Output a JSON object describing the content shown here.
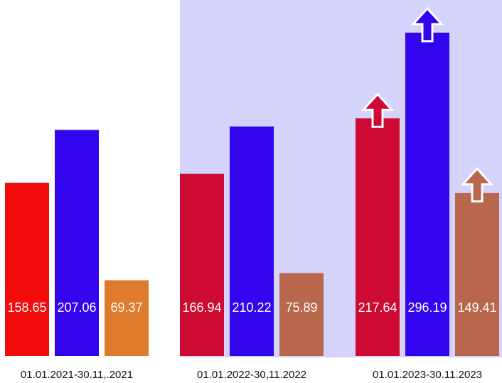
{
  "chart_data": {
    "type": "bar",
    "categories": [
      "01.01.2021-30.11,.2021",
      "01.01.2022-30,11.2022",
      "01.01.2023-30.11.2023"
    ],
    "series": [
      {
        "colors": [
          "#f40c0c",
          "#cc0a32",
          "#cc0a32"
        ],
        "values": [
          158.65,
          166.94,
          217.64
        ]
      },
      {
        "colors": [
          "#3305ee",
          "#3305ee",
          "#3305ee"
        ],
        "values": [
          207.06,
          210.22,
          296.19
        ]
      },
      {
        "colors": [
          "#df7b2c",
          "#b8674c",
          "#b8674c"
        ],
        "values": [
          69.37,
          75.89,
          149.41
        ]
      }
    ],
    "ylim": [
      0,
      300
    ]
  }
}
